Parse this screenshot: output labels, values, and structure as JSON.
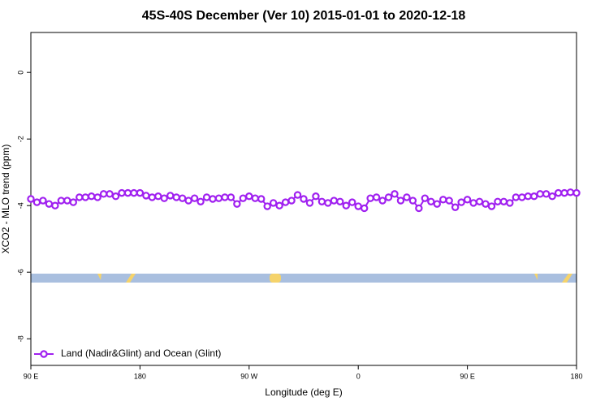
{
  "chart_data": {
    "type": "line",
    "title": "45S-40S December (Ver 10)   2015-01-01 to 2020-12-18",
    "x_label": "Longitude (deg E)",
    "y_label": "XCO2 - MLO trend (ppm)",
    "xlim": [
      90,
      540
    ],
    "ylim": [
      -8.8,
      1.2
    ],
    "xticks": [
      {
        "value": 90,
        "label": "90 E"
      },
      180,
      {
        "value": 270,
        "label": "90 W"
      },
      {
        "value": 360,
        "label": "0"
      },
      {
        "value": 450,
        "label": "90 E"
      },
      {
        "value": 540,
        "label": "180"
      }
    ],
    "yticks": [
      0,
      -2,
      -4,
      -6,
      -8
    ],
    "legend": "bottom-left",
    "x": [
      90,
      95,
      100,
      105,
      110,
      115,
      120,
      125,
      130,
      135,
      140,
      145,
      150,
      155,
      160,
      165,
      170,
      175,
      180,
      185,
      190,
      195,
      200,
      205,
      210,
      215,
      220,
      225,
      230,
      235,
      240,
      245,
      250,
      255,
      260,
      265,
      270,
      275,
      280,
      285,
      290,
      295,
      300,
      305,
      310,
      315,
      320,
      325,
      330,
      335,
      340,
      345,
      350,
      355,
      360,
      365,
      370,
      375,
      380,
      385,
      390,
      395,
      400,
      405,
      410,
      415,
      420,
      425,
      430,
      435,
      440,
      445,
      450,
      455,
      460,
      465,
      470,
      475,
      480,
      485,
      490,
      495,
      500,
      505,
      510,
      515,
      520,
      525,
      530,
      535,
      540
    ],
    "series": [
      {
        "name": "Land (Nadir&Glint) and Ocean (Glint)",
        "color": "#a020f0",
        "values": [
          -3.8,
          -3.9,
          -3.85,
          -3.95,
          -4.0,
          -3.85,
          -3.85,
          -3.9,
          -3.75,
          -3.75,
          -3.72,
          -3.75,
          -3.65,
          -3.65,
          -3.72,
          -3.62,
          -3.62,
          -3.62,
          -3.62,
          -3.7,
          -3.75,
          -3.72,
          -3.78,
          -3.7,
          -3.75,
          -3.78,
          -3.85,
          -3.78,
          -3.88,
          -3.75,
          -3.8,
          -3.78,
          -3.75,
          -3.75,
          -3.95,
          -3.78,
          -3.72,
          -3.78,
          -3.8,
          -4.02,
          -3.92,
          -4.0,
          -3.9,
          -3.85,
          -3.68,
          -3.8,
          -3.92,
          -3.72,
          -3.88,
          -3.92,
          -3.85,
          -3.88,
          -4.0,
          -3.9,
          -4.02,
          -4.08,
          -3.78,
          -3.75,
          -3.85,
          -3.75,
          -3.65,
          -3.85,
          -3.75,
          -3.85,
          -4.08,
          -3.78,
          -3.88,
          -3.95,
          -3.82,
          -3.85,
          -4.05,
          -3.9,
          -3.82,
          -3.92,
          -3.88,
          -3.95,
          -4.02,
          -3.88,
          -3.88,
          -3.92,
          -3.75,
          -3.75,
          -3.72,
          -3.72,
          -3.65,
          -3.65,
          -3.72,
          -3.62,
          -3.62,
          -3.6,
          -3.62
        ]
      }
    ]
  }
}
